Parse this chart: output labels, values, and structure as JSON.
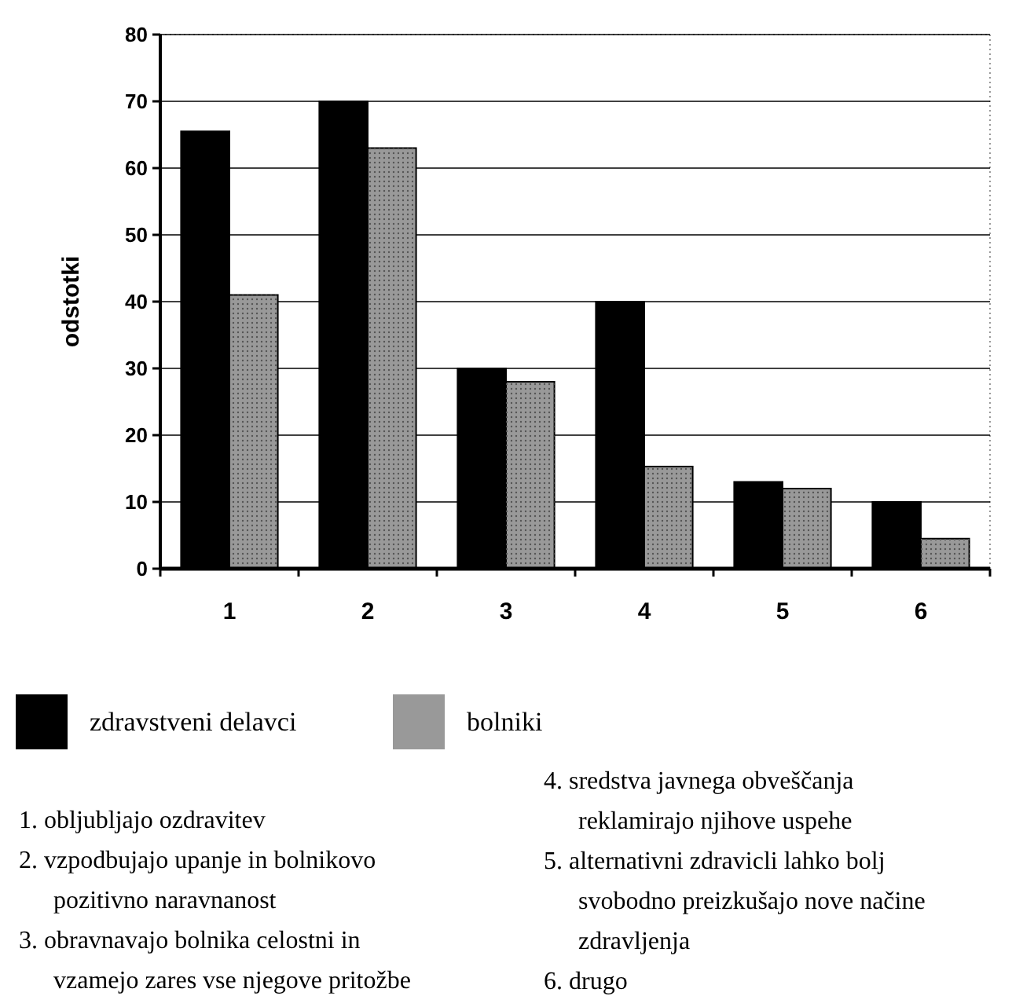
{
  "chart_data": {
    "type": "bar",
    "ylabel": "odstotki",
    "categories": [
      "1",
      "2",
      "3",
      "4",
      "5",
      "6"
    ],
    "series": [
      {
        "name": "zdravstveni delavci",
        "color": "#000000",
        "values": [
          65.5,
          70,
          30,
          40,
          13,
          10
        ]
      },
      {
        "name": "bolniki",
        "color": "#999999",
        "values": [
          41,
          63,
          28,
          15.3,
          12,
          4.5
        ]
      }
    ],
    "ylim": [
      0,
      80
    ],
    "yticks": [
      0,
      10,
      20,
      30,
      40,
      50,
      60,
      70,
      80
    ],
    "grid": "y",
    "legend": "bottom",
    "annotations": [
      "1. obljubljajo ozdravitev",
      "2. vzpodbujajo upanje in bolnikovo pozitivno naravnanost",
      "3. obravnavajo bolnika celostni in vzamejo zares vse njegove pritožbe",
      "4. sredstva javnega obveščanja reklamirajo njihove uspehe",
      "5. alternativni zdravicli lahko bolj svobodno preizkušajo nove načine zdravljenja",
      "6. drugo"
    ]
  }
}
